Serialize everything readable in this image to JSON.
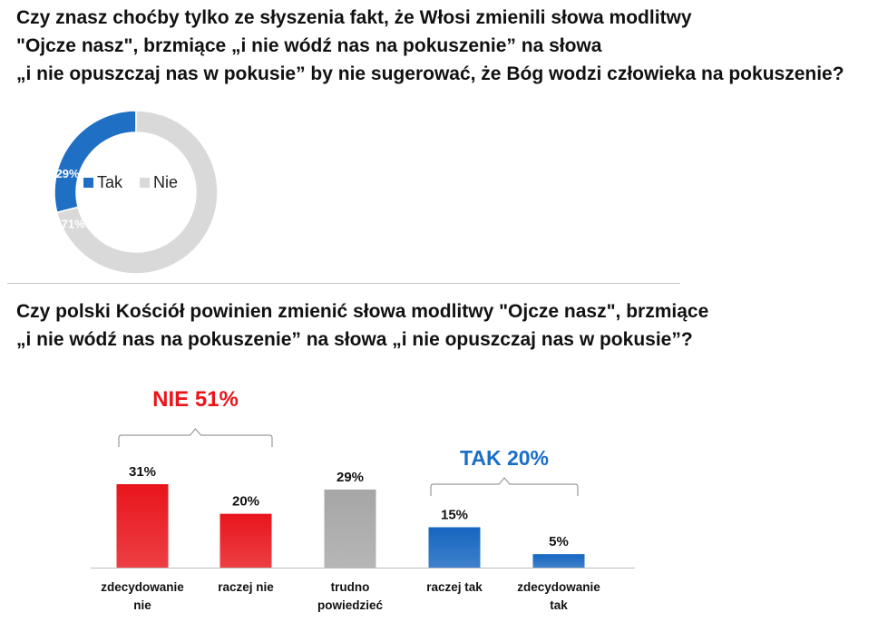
{
  "question1": {
    "lines": [
      "Czy znasz choćby tylko ze słyszenia fakt, że Włosi zmienili słowa modlitwy",
      "\"Ojcze nasz\", brzmiące „i nie wódź nas na pokuszenie” na słowa",
      "„i nie opuszczaj nas w pokusie” by nie sugerować, że Bóg wodzi człowieka na pokuszenie?"
    ]
  },
  "question2": {
    "lines": [
      "Czy polski Kościół powinien zmienić słowa modlitwy \"Ojcze nasz\", brzmiące",
      "„i nie wódź nas na pokuszenie” na słowa „i nie opuszczaj nas w pokusie”?"
    ]
  },
  "chart_data": [
    {
      "type": "pie",
      "donut": true,
      "categories": [
        "Tak",
        "Nie"
      ],
      "values": [
        29,
        71
      ],
      "data_labels": [
        "29%",
        "71%"
      ],
      "colors": [
        "#1f6fc5",
        "#d9d9d9"
      ],
      "legend": {
        "placement": "center",
        "entries": [
          "Tak",
          "Nie"
        ]
      }
    },
    {
      "type": "bar",
      "categories": [
        [
          "zdecydowanie",
          "nie"
        ],
        [
          "raczej nie"
        ],
        [
          "trudno",
          "powiedzieć"
        ],
        [
          "raczej tak"
        ],
        [
          "zdecydowanie",
          "tak"
        ]
      ],
      "values": [
        31,
        20,
        29,
        15,
        5
      ],
      "data_labels": [
        "31%",
        "20%",
        "29%",
        "15%",
        "5%"
      ],
      "colors": [
        "#e8151b",
        "#e8151b",
        "#a6a6a6",
        "#1565c0",
        "#1565c0"
      ],
      "ylim": [
        0,
        35
      ],
      "grid": false,
      "groups": [
        {
          "label": "NIE 51%",
          "color": "#e8151b",
          "members": [
            0,
            1
          ]
        },
        {
          "label": "TAK 20%",
          "color": "#1a6ec8",
          "members": [
            3,
            4
          ]
        }
      ]
    }
  ]
}
